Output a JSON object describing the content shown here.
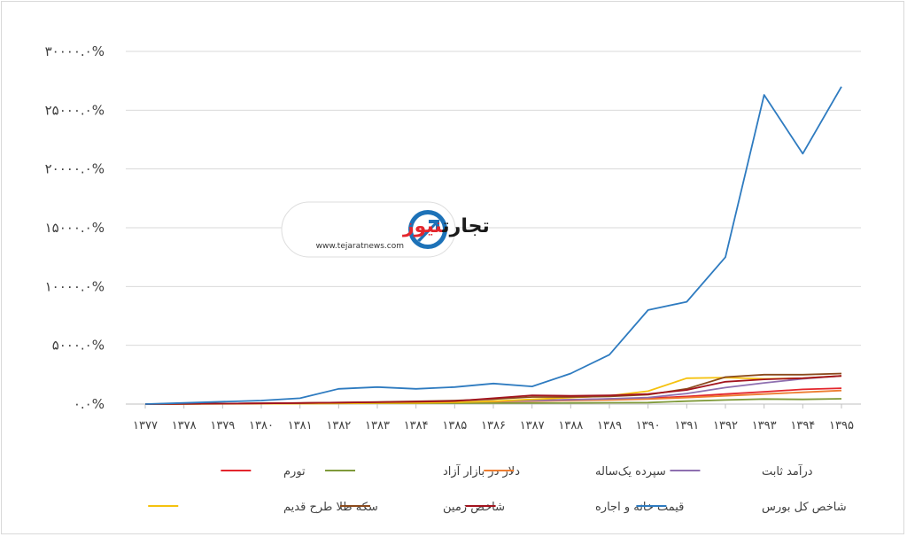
{
  "logo": {
    "title_part1": "تجارت",
    "title_part2": "نیوز",
    "url": "www.tejaratnews.com",
    "color_dark": "#1a1a1a",
    "color_accent": "#e3262d",
    "icon_blue": "#1d72b8"
  },
  "chart_data": {
    "type": "line",
    "title": "",
    "xlabel": "",
    "ylabel": "",
    "ylim": [
      0,
      30000
    ],
    "yticks": [
      0,
      5000,
      10000,
      15000,
      20000,
      25000,
      30000
    ],
    "ytick_labels": [
      "۰.۰%",
      "۵۰۰۰.۰%",
      "۱۰۰۰۰.۰%",
      "۱۵۰۰۰.۰%",
      "۲۰۰۰۰.۰%",
      "۲۵۰۰۰.۰%",
      "۳۰۰۰۰.۰%"
    ],
    "grid": "horizontal",
    "legend_position": "bottom",
    "categories": [
      "۱۳۷۷",
      "۱۳۷۸",
      "۱۳۷۹",
      "۱۳۸۰",
      "۱۳۸۱",
      "۱۳۸۲",
      "۱۳۸۳",
      "۱۳۸۴",
      "۱۳۸۵",
      "۱۳۸۶",
      "۱۳۸۷",
      "۱۳۸۸",
      "۱۳۸۹",
      "۱۳۹۰",
      "۱۳۹۱",
      "۱۳۹۲",
      "۱۳۹۳",
      "۱۳۹۴",
      "۱۳۹۵"
    ],
    "series": [
      {
        "name": "تورم",
        "color": "#e3262d",
        "values": [
          0,
          20,
          40,
          60,
          80,
          110,
          140,
          170,
          200,
          260,
          320,
          380,
          430,
          500,
          650,
          850,
          1050,
          1250,
          1350
        ]
      },
      {
        "name": "دلار در بازار آزاد",
        "color": "#7f9a3a",
        "values": [
          0,
          15,
          30,
          40,
          50,
          60,
          65,
          70,
          75,
          80,
          90,
          100,
          110,
          130,
          250,
          350,
          430,
          400,
          450
        ]
      },
      {
        "name": "سپرده یک‌ساله",
        "color": "#ed7d31",
        "values": [
          0,
          20,
          40,
          60,
          80,
          100,
          120,
          150,
          180,
          210,
          250,
          300,
          350,
          420,
          550,
          700,
          850,
          1000,
          1150
        ]
      },
      {
        "name": "درآمد ثابت",
        "color": "#8e6fb0",
        "values": [
          0,
          20,
          40,
          60,
          80,
          100,
          130,
          160,
          200,
          250,
          300,
          370,
          450,
          560,
          900,
          1400,
          1800,
          2150,
          2400
        ]
      },
      {
        "name": "سکه طلا طرح قدیم",
        "color": "#f5c20f",
        "values": [
          0,
          10,
          20,
          30,
          40,
          60,
          80,
          100,
          150,
          250,
          400,
          550,
          700,
          1100,
          2200,
          2250,
          2150,
          2200,
          2400
        ]
      },
      {
        "name": "شاخص زمین",
        "color": "#8b4a1c",
        "values": [
          0,
          20,
          40,
          60,
          90,
          130,
          170,
          230,
          300,
          420,
          600,
          600,
          650,
          800,
          1300,
          2300,
          2500,
          2500,
          2600
        ]
      },
      {
        "name": "قیمت خانه و اجاره",
        "color": "#a3141e",
        "values": [
          0,
          20,
          40,
          60,
          90,
          130,
          160,
          200,
          260,
          500,
          750,
          700,
          750,
          850,
          1200,
          1900,
          2100,
          2200,
          2400
        ]
      },
      {
        "name": "شاخص کل بورس",
        "color": "#2e7bc0",
        "values": [
          0,
          100,
          200,
          300,
          500,
          1300,
          1450,
          1300,
          1450,
          1750,
          1500,
          2600,
          4200,
          8000,
          8700,
          12500,
          26300,
          21300,
          27000
        ]
      }
    ]
  }
}
